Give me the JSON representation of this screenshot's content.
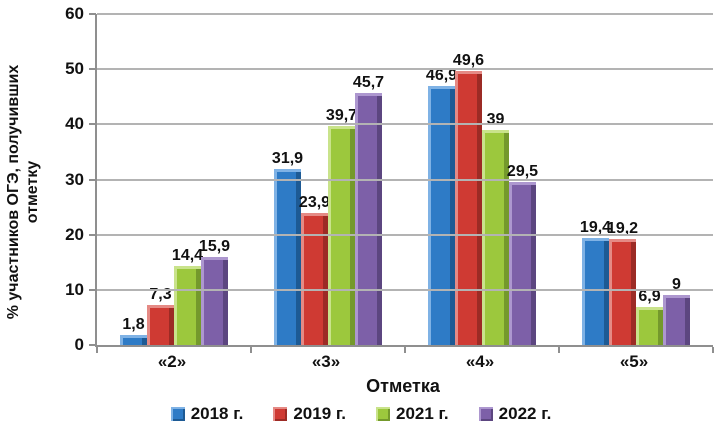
{
  "chart_data": {
    "type": "bar",
    "title": "",
    "xlabel": "Отметка",
    "ylabel": "% участников ОГЭ, получивших отметку",
    "ylim": [
      0,
      60
    ],
    "yticks": [
      0,
      10,
      20,
      30,
      40,
      50,
      60
    ],
    "grid": true,
    "legend_position": "bottom",
    "categories": [
      "«2»",
      "«3»",
      "«4»",
      "«5»"
    ],
    "series": [
      {
        "name": "2018 г.",
        "values": [
          1.8,
          31.9,
          46.9,
          19.4
        ],
        "labels": [
          "1,8",
          "31,9",
          "46,9",
          "19,4"
        ],
        "color": "#2e7bc6",
        "light": "#7fb2e5",
        "dark": "#1d5a94"
      },
      {
        "name": "2019 г.",
        "values": [
          7.3,
          23.9,
          49.6,
          19.2
        ],
        "labels": [
          "7,3",
          "23,9",
          "49,6",
          "19,2"
        ],
        "color": "#cf3a33",
        "light": "#e58a85",
        "dark": "#9c2b25"
      },
      {
        "name": "2021 г.",
        "values": [
          14.4,
          39.7,
          39,
          6.9
        ],
        "labels": [
          "14,4",
          "39,7",
          "39",
          "6,9"
        ],
        "color": "#9cc83d",
        "light": "#c9e38b",
        "dark": "#74992c"
      },
      {
        "name": "2022 г.",
        "values": [
          15.9,
          45.7,
          29.5,
          9
        ],
        "labels": [
          "15,9",
          "45,7",
          "29,5",
          "9"
        ],
        "color": "#7d60a8",
        "light": "#ad97cf",
        "dark": "#5c4680"
      }
    ]
  },
  "colors": {
    "grid": "#b3b3b3",
    "axis": "#8f8f8f",
    "text": "#111111",
    "background": "#ffffff"
  }
}
